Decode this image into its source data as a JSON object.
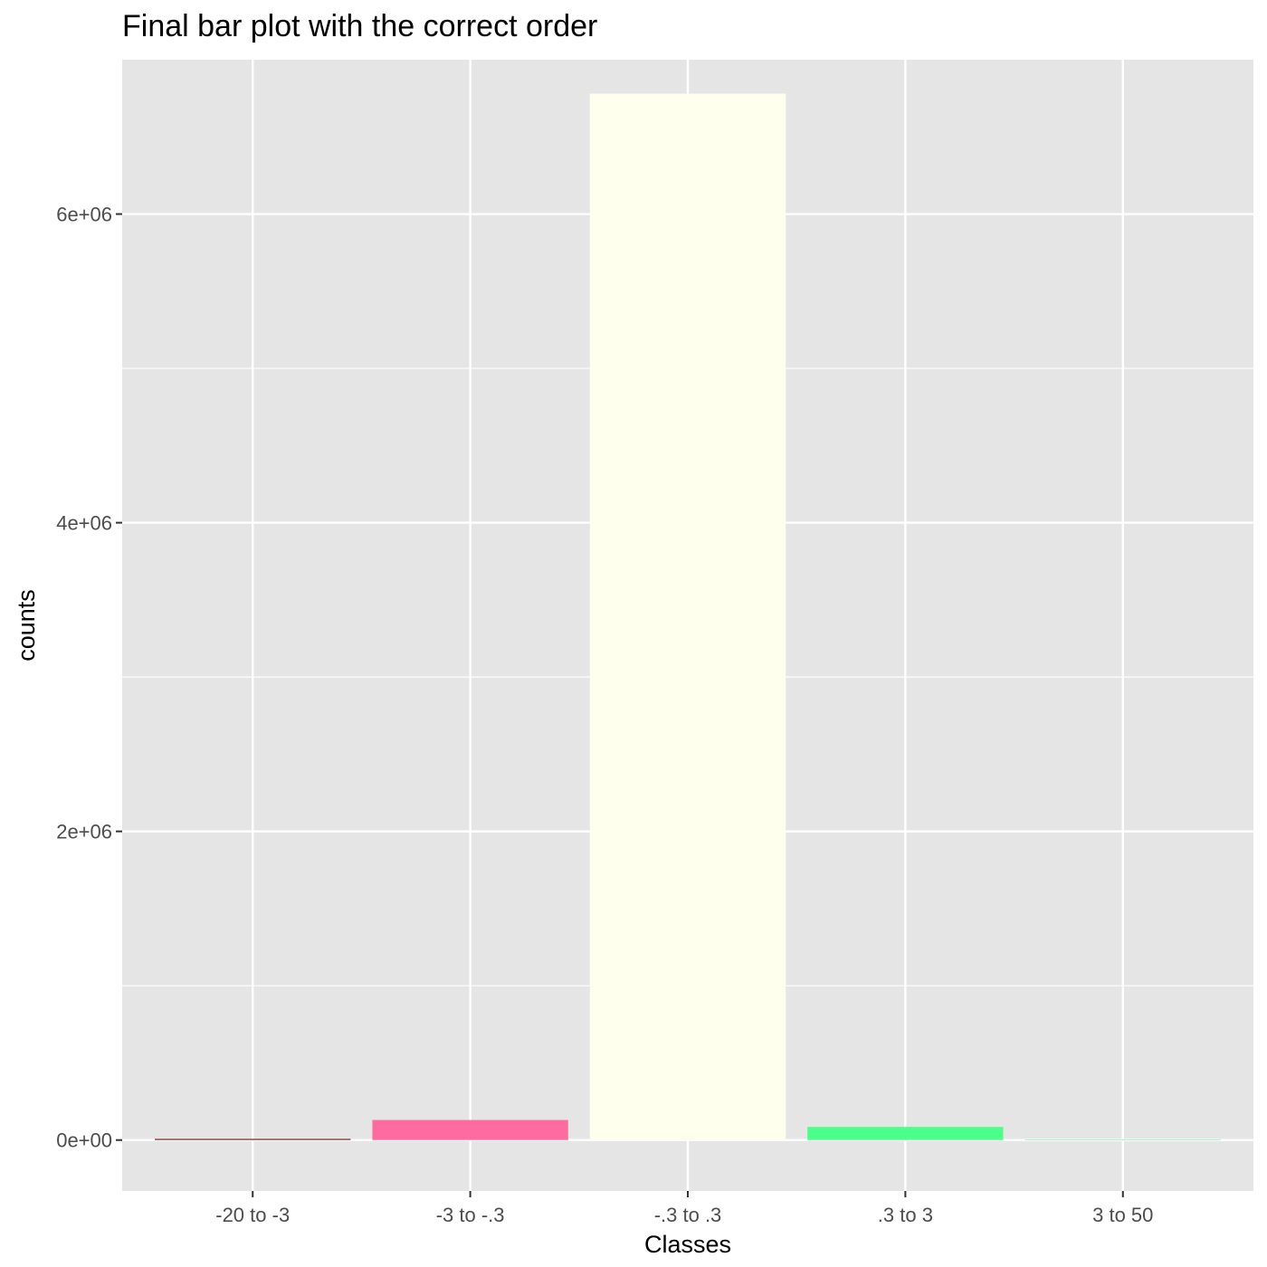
{
  "chart_data": {
    "type": "bar",
    "title": "Final bar plot with the correct order",
    "xlabel": "Classes",
    "ylabel": "counts",
    "categories": [
      "-20 to -3",
      "-3 to -.3",
      "-.3 to .3",
      ".3 to 3",
      "3 to 50"
    ],
    "values": [
      8000,
      130000,
      6780000,
      85000,
      4000
    ],
    "bar_colors": [
      "#8B3A3A",
      "#FF6B9E",
      "#FFFFEE",
      "#4CFF8A",
      "#A8F0C8"
    ],
    "ylim": [
      -330000,
      7000000
    ],
    "yticks": [
      0,
      2000000,
      4000000,
      6000000
    ],
    "ytick_labels": [
      "0e+00",
      "2e+06",
      "4e+06",
      "6e+06"
    ],
    "grid": true,
    "legend": "none",
    "panel_background": "#E5E5E5",
    "grid_color": "#FFFFFF"
  }
}
